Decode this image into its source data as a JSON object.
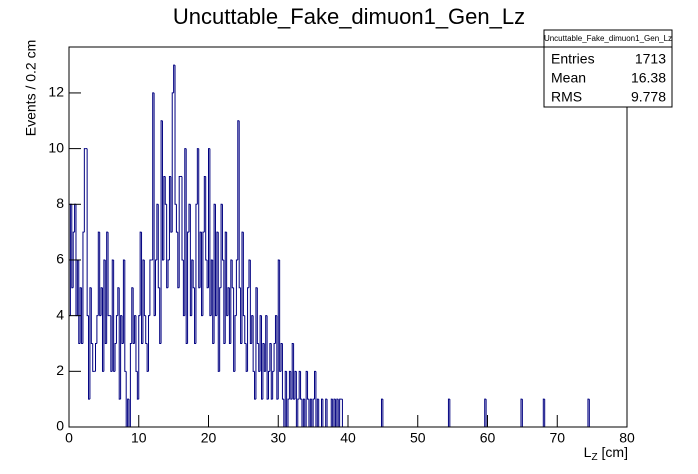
{
  "chart_data": {
    "type": "histogram",
    "title": "Uncuttable_Fake_dimuon1_Gen_Lz",
    "xlabel": {
      "main": "L",
      "sub": "Z",
      "unit": "[cm]"
    },
    "ylabel": "Events / 0.2 cm",
    "color": "#000080",
    "xlim": [
      0,
      80
    ],
    "ylim": [
      0,
      13.65
    ],
    "xticks": [
      0,
      10,
      20,
      30,
      40,
      50,
      60,
      70,
      80
    ],
    "yticks": [
      0,
      2,
      4,
      6,
      8,
      10,
      12
    ],
    "stats": {
      "title": "Uncuttable_Fake_dimuon1_Gen_Lz",
      "rows": [
        {
          "label": "Entries",
          "value": 1713
        },
        {
          "label": "Mean",
          "value": 16.38
        },
        {
          "label": "RMS",
          "value": 9.778
        }
      ]
    },
    "bins": [
      0,
      0.2,
      0.4,
      0.6,
      0.8,
      1,
      1.2,
      1.4,
      1.6,
      1.8,
      2,
      2.2,
      2.4,
      2.6,
      2.8,
      3,
      3.2,
      3.4,
      3.6,
      3.8,
      4,
      4.2,
      4.4,
      4.6,
      4.8,
      5,
      5.2,
      5.4,
      5.6,
      5.8,
      6,
      6.2,
      6.4,
      6.6,
      6.8,
      7,
      7.2,
      7.4,
      7.6,
      7.8,
      8,
      8.2,
      8.4,
      8.6,
      8.8,
      9,
      9.2,
      9.4,
      9.6,
      9.8,
      10,
      10.2,
      10.4,
      10.6,
      10.8,
      11,
      11.2,
      11.4,
      11.6,
      11.8,
      12,
      12.2,
      12.4,
      12.6,
      12.8,
      13,
      13.2,
      13.4,
      13.6,
      13.8,
      14,
      14.2,
      14.4,
      14.6,
      14.8,
      15,
      15.2,
      15.4,
      15.6,
      15.8,
      16,
      16.2,
      16.4,
      16.6,
      16.8,
      17,
      17.2,
      17.4,
      17.6,
      17.8,
      18,
      18.2,
      18.4,
      18.6,
      18.8,
      19,
      19.2,
      19.4,
      19.6,
      19.8,
      20,
      20.2,
      20.4,
      20.6,
      20.8,
      21,
      21.2,
      21.4,
      21.6,
      21.8,
      22,
      22.2,
      22.4,
      22.6,
      22.8,
      23,
      23.2,
      23.4,
      23.6,
      23.8,
      24,
      24.2,
      24.4,
      24.6,
      24.8,
      25,
      25.2,
      25.4,
      25.6,
      25.8,
      26,
      26.2,
      26.4,
      26.6,
      26.8,
      27,
      27.2,
      27.4,
      27.6,
      27.8,
      28,
      28.2,
      28.4,
      28.6,
      28.8,
      29,
      29.2,
      29.4,
      29.6,
      29.8,
      30,
      30.2,
      30.4,
      30.6,
      30.8,
      31,
      31.2,
      31.4,
      31.6,
      31.8,
      32,
      32.2,
      32.4,
      32.6,
      32.8,
      33,
      33.2,
      33.4,
      33.6,
      33.8,
      34,
      34.2,
      34.4,
      34.6,
      34.8,
      35,
      35.2,
      35.4,
      35.6,
      35.8,
      36,
      36.2,
      36.4,
      36.6,
      36.8,
      37,
      37.2,
      37.4,
      37.6,
      37.8,
      38,
      38.2,
      38.4,
      38.6,
      38.8,
      39,
      39.2,
      39.4,
      39.6,
      39.8,
      40,
      40.2,
      40.4,
      40.6,
      40.8,
      41,
      41.2,
      41.4,
      41.6,
      41.8,
      42,
      42.2,
      42.4,
      42.6,
      42.8,
      43,
      43.2,
      43.4,
      43.6,
      43.8,
      44,
      44.2,
      44.4,
      44.6,
      44.8,
      45,
      45.2,
      45.4,
      45.6,
      45.8,
      46,
      46.2,
      46.4,
      46.6,
      46.8,
      47,
      47.2,
      47.4,
      47.6,
      47.8,
      48,
      48.2,
      48.4,
      48.6,
      48.8,
      49,
      49.2,
      49.4,
      49.6,
      49.8,
      50,
      50.2,
      50.4,
      50.6,
      50.8,
      51,
      51.2,
      51.4,
      51.6,
      51.8,
      52,
      52.2,
      52.4,
      52.6,
      52.8,
      53,
      53.2,
      53.4,
      53.6,
      53.8,
      54,
      54.2,
      54.4,
      54.6,
      54.8,
      55,
      55.2,
      55.4,
      55.6,
      55.8,
      56,
      56.2,
      56.4,
      56.6,
      56.8,
      57,
      57.2,
      57.4,
      57.6,
      57.8,
      58,
      58.2,
      58.4,
      58.6,
      58.8,
      59,
      59.2,
      59.4,
      59.6,
      59.8,
      60,
      60.2,
      60.4,
      60.6,
      60.8,
      61,
      61.2,
      61.4,
      61.6,
      61.8,
      62,
      62.2,
      62.4,
      62.6,
      62.8,
      63,
      63.2,
      63.4,
      63.6,
      63.8,
      64,
      64.2,
      64.4,
      64.6,
      64.8,
      65,
      65.2,
      65.4,
      65.6,
      65.8,
      66,
      66.2,
      66.4,
      66.6,
      66.8,
      67,
      67.2,
      67.4,
      67.6,
      67.8,
      68,
      68.2,
      68.4,
      68.6,
      68.8,
      69,
      69.2,
      69.4,
      69.6,
      69.8,
      70,
      70.2,
      70.4,
      70.6,
      70.8,
      71,
      71.2,
      71.4,
      71.6,
      71.8,
      72,
      72.2,
      72.4,
      72.6,
      72.8,
      73,
      73.2,
      73.4,
      73.6,
      73.8,
      74,
      74.2,
      74.4,
      74.6,
      74.8,
      75,
      75.2,
      75.4,
      75.6,
      75.8,
      76,
      76.2,
      76.4,
      76.6,
      76.8,
      77,
      77.2,
      77.4,
      77.6,
      77.8,
      78,
      78.2,
      78.4,
      78.6,
      78.8,
      79,
      79.2,
      79.4,
      79.6,
      79.8,
      80
    ],
    "values": [
      4,
      8,
      5,
      7,
      8,
      4,
      6,
      3,
      5,
      3,
      7,
      10,
      10,
      4,
      1,
      5,
      3,
      2,
      2,
      3,
      4,
      7,
      4,
      5,
      2,
      6,
      3,
      7,
      4,
      4,
      2,
      6,
      2,
      3,
      4,
      5,
      1,
      4,
      3,
      6,
      2,
      0,
      1,
      0,
      3,
      5,
      3,
      4,
      2,
      1,
      4,
      7,
      3,
      6,
      4,
      3,
      2,
      4,
      6,
      6,
      12,
      4,
      6,
      8,
      5,
      3,
      11,
      6,
      9,
      8,
      5,
      6,
      9,
      7,
      12,
      13,
      8,
      7,
      5,
      9,
      9,
      6,
      4,
      10,
      3,
      7,
      8,
      4,
      6,
      5,
      3,
      8,
      10,
      5,
      7,
      4,
      7,
      9,
      6,
      5,
      10,
      4,
      6,
      3,
      8,
      4,
      7,
      2,
      5,
      8,
      6,
      3,
      7,
      4,
      5,
      3,
      6,
      5,
      2,
      4,
      6,
      11,
      5,
      3,
      7,
      4,
      3,
      2,
      5,
      6,
      3,
      4,
      2,
      1,
      5,
      3,
      2,
      4,
      1,
      3,
      2,
      4,
      1,
      2,
      3,
      1,
      2,
      3,
      4,
      1,
      6,
      2,
      3,
      1,
      0,
      2,
      0,
      1,
      2,
      1,
      3,
      1,
      2,
      0,
      1,
      2,
      1,
      0,
      1,
      0,
      2,
      1,
      0,
      1,
      0,
      1,
      2,
      0,
      1,
      0,
      0,
      1,
      0,
      0,
      1,
      0,
      0,
      0,
      1,
      0,
      1,
      0,
      1,
      0,
      1,
      1,
      0,
      0,
      0,
      0,
      0,
      0,
      0,
      0,
      0,
      0,
      0,
      0,
      0,
      0,
      0,
      0,
      0,
      0,
      0,
      0,
      0,
      0,
      0,
      0,
      0,
      0,
      0,
      0,
      1,
      0,
      0,
      0,
      0,
      0,
      0,
      0,
      0,
      0,
      0,
      0,
      0,
      0,
      0,
      0,
      0,
      0,
      0,
      0,
      0,
      0,
      0,
      0,
      0,
      0,
      0,
      0,
      0,
      0,
      0,
      0,
      0,
      0,
      0,
      0,
      0,
      0,
      0,
      0,
      0,
      0,
      0,
      0,
      0,
      0,
      0,
      0,
      1,
      0,
      0,
      0,
      0,
      0,
      0,
      0,
      0,
      0,
      0,
      0,
      0,
      0,
      0,
      0,
      0,
      0,
      0,
      0,
      0,
      0,
      0,
      0,
      0,
      0,
      1,
      0,
      0,
      0,
      0,
      0,
      0,
      0,
      0,
      0,
      0,
      0,
      0,
      0,
      0,
      0,
      0,
      0,
      0,
      0,
      0,
      0,
      0,
      0,
      0,
      0,
      1,
      0,
      0,
      0,
      0,
      0,
      0,
      0,
      0,
      0,
      0,
      0,
      0,
      0,
      0,
      0,
      1,
      0,
      0,
      0,
      0,
      0,
      0,
      0,
      0,
      0,
      0,
      0,
      0,
      0,
      0,
      0,
      0,
      0,
      0,
      0,
      0,
      0,
      0,
      0,
      0,
      0,
      0,
      0,
      0,
      0,
      0,
      0,
      1,
      0,
      0,
      0,
      0,
      0,
      0,
      0,
      0,
      0,
      0,
      0,
      0,
      0,
      0,
      0,
      0,
      0,
      0,
      0,
      0,
      0,
      0,
      0,
      0,
      0,
      0,
      0
    ]
  }
}
